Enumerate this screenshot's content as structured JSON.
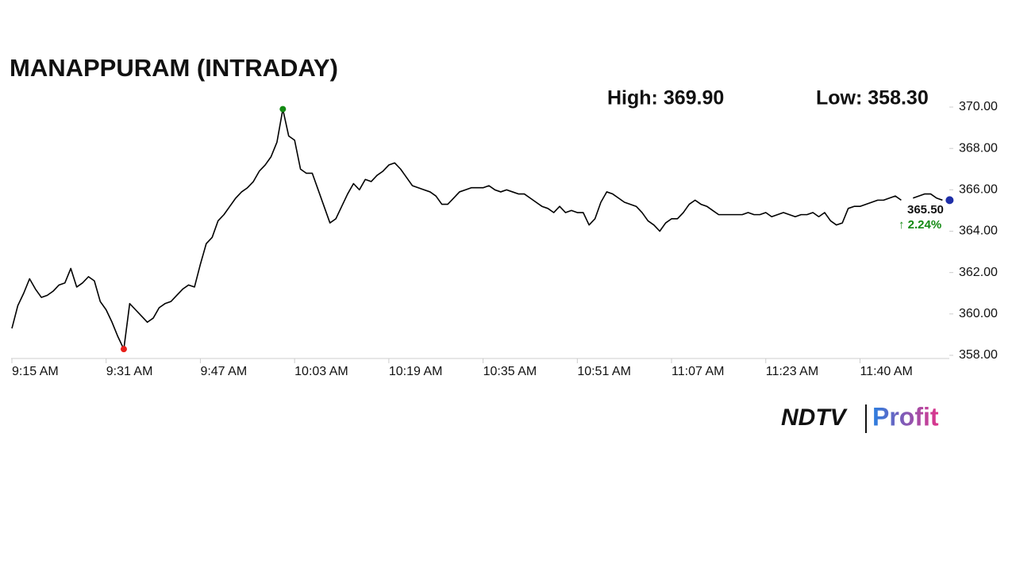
{
  "chart_data": {
    "type": "line",
    "title": "MANAPPURAM (INTRADAY)",
    "annotations": {
      "high": "High: 369.90",
      "low": "Low: 358.30",
      "last": "365.50",
      "change": "↑ 2.24%"
    },
    "categories": [
      "9:15 AM",
      null,
      null,
      null,
      null,
      null,
      null,
      null,
      null,
      null,
      null,
      null,
      null,
      null,
      null,
      null,
      "9:31 AM",
      null,
      null,
      null,
      null,
      null,
      null,
      null,
      null,
      null,
      null,
      null,
      null,
      null,
      null,
      null,
      "9:47 AM",
      null,
      null,
      null,
      null,
      null,
      null,
      null,
      null,
      null,
      null,
      null,
      null,
      null,
      null,
      null,
      "10:03 AM",
      null,
      null,
      null,
      null,
      null,
      null,
      null,
      null,
      null,
      null,
      null,
      null,
      null,
      null,
      null,
      "10:19 AM",
      null,
      null,
      null,
      null,
      null,
      null,
      null,
      null,
      null,
      null,
      null,
      null,
      null,
      null,
      null,
      "10:35 AM",
      null,
      null,
      null,
      null,
      null,
      null,
      null,
      null,
      null,
      null,
      null,
      null,
      null,
      null,
      null,
      "10:51 AM",
      null,
      null,
      null,
      null,
      null,
      null,
      null,
      null,
      null,
      null,
      null,
      null,
      null,
      null,
      null,
      "11:07 AM",
      null,
      null,
      null,
      null,
      null,
      null,
      null,
      null,
      null,
      null,
      null,
      null,
      null,
      null,
      null,
      "11:23 AM",
      null,
      null,
      null,
      null,
      null,
      null,
      null,
      null,
      null,
      null,
      null,
      null,
      null,
      null,
      null,
      "11:40 AM",
      null,
      null,
      null,
      null,
      null,
      null,
      null,
      null,
      null,
      null,
      null,
      null,
      null,
      null
    ],
    "series": [
      {
        "name": "MANAPPURAM",
        "color": "#000000",
        "values": [
          359.3,
          360.4,
          361.0,
          361.7,
          361.2,
          360.8,
          360.9,
          361.1,
          361.4,
          361.5,
          362.2,
          361.3,
          361.5,
          361.8,
          361.6,
          360.6,
          360.2,
          359.6,
          358.9,
          358.3,
          360.5,
          360.2,
          359.9,
          359.6,
          359.8,
          360.3,
          360.5,
          360.6,
          360.9,
          361.2,
          361.4,
          361.3,
          362.4,
          363.4,
          363.7,
          364.5,
          364.8,
          365.2,
          365.6,
          365.9,
          366.1,
          366.4,
          366.9,
          367.2,
          367.6,
          368.3,
          369.9,
          368.6,
          368.4,
          367.0,
          366.8,
          366.8,
          366.0,
          365.2,
          364.4,
          364.6,
          365.2,
          365.8,
          366.3,
          366.0,
          366.5,
          366.4,
          366.7,
          366.9,
          367.2,
          367.3,
          367.0,
          366.6,
          366.2,
          366.1,
          366.0,
          365.9,
          365.7,
          365.3,
          365.3,
          365.6,
          365.9,
          366.0,
          366.1,
          366.1,
          366.1,
          366.2,
          366.0,
          365.9,
          366.0,
          365.9,
          365.8,
          365.8,
          365.6,
          365.4,
          365.2,
          365.1,
          364.9,
          365.2,
          364.9,
          365.0,
          364.9,
          364.9,
          364.3,
          364.6,
          365.4,
          365.9,
          365.8,
          365.6,
          365.4,
          365.3,
          365.2,
          364.9,
          364.5,
          364.3,
          364.0,
          364.4,
          364.6,
          364.6,
          364.9,
          365.3,
          365.5,
          365.3,
          365.2,
          365.0,
          364.8,
          364.8,
          364.8,
          364.8,
          364.8,
          364.9,
          364.8,
          364.8,
          364.9,
          364.7,
          364.8,
          364.9,
          364.8,
          364.7,
          364.8,
          364.8,
          364.9,
          364.7,
          364.9,
          364.5,
          364.3,
          364.4,
          365.1,
          365.2,
          365.2,
          365.3,
          365.4,
          365.5,
          365.5,
          365.6,
          365.7,
          365.5,
          null,
          365.6,
          365.7,
          365.8,
          365.8,
          365.6,
          365.5
        ]
      }
    ],
    "high_color": "#138a13",
    "low_color": "#e8201a",
    "last_color": "#1f2fa8",
    "change_color": "#138a13",
    "ylim": [
      358,
      370
    ],
    "yticks": [
      {
        "value": 358,
        "label": "358.00"
      },
      {
        "value": 360,
        "label": "360.00"
      },
      {
        "value": 362,
        "label": "362.00"
      },
      {
        "value": 364,
        "label": "364.00"
      },
      {
        "value": 366,
        "label": "366.00"
      },
      {
        "value": 368,
        "label": "368.00"
      },
      {
        "value": 370,
        "label": "370.00"
      }
    ],
    "grid": false
  },
  "branding": {
    "brand": "NDTV",
    "product": "Profit"
  }
}
